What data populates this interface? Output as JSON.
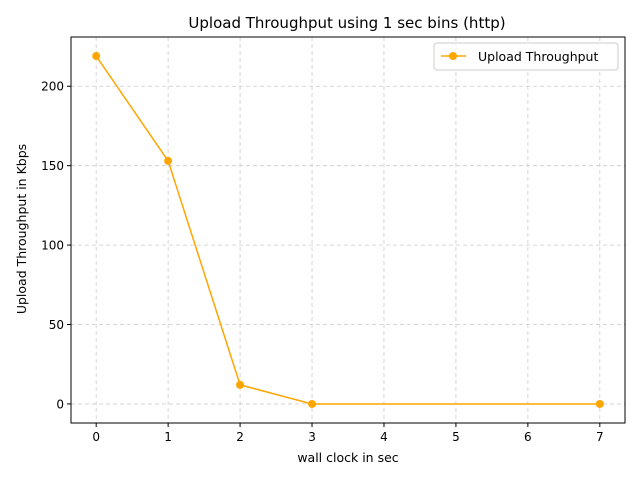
{
  "chart_data": {
    "type": "line",
    "title": "Upload Throughput using 1 sec bins (http)",
    "xlabel": "wall clock in sec",
    "ylabel": "Upload Throughput in Kbps",
    "xlim": [
      -0.35,
      7.35
    ],
    "ylim": [
      -12,
      231
    ],
    "xticks": [
      0,
      1,
      2,
      3,
      4,
      5,
      6,
      7
    ],
    "yticks": [
      0,
      50,
      100,
      150,
      200
    ],
    "grid": true,
    "legend_position": "top-right",
    "series": [
      {
        "name": "Upload Throughput",
        "color": "#FFA500",
        "marker": "circle",
        "x": [
          0,
          1,
          2,
          3,
          7
        ],
        "y": [
          219,
          153,
          12,
          0,
          0
        ]
      }
    ]
  }
}
